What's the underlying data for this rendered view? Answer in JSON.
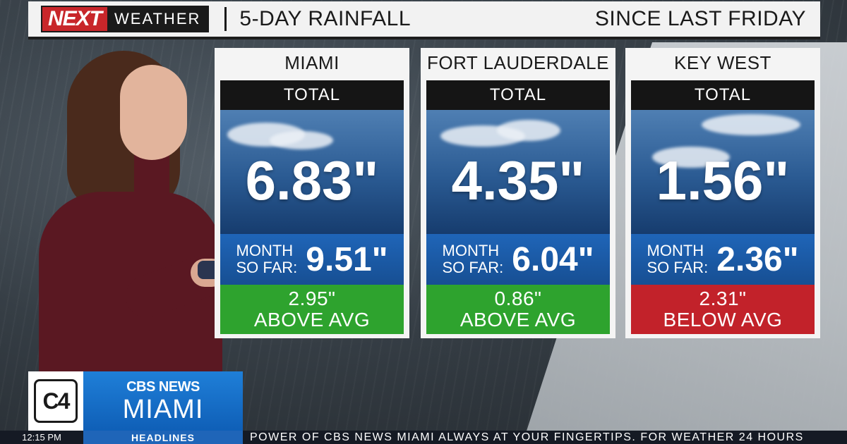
{
  "header": {
    "brand_next": "NEXT",
    "brand_weather": "WEATHER",
    "title": "5-DAY RAINFALL",
    "subtitle": "SINCE LAST FRIDAY"
  },
  "cards": [
    {
      "city": "MIAMI",
      "total_label": "TOTAL",
      "total": "6.83\"",
      "month_label_1": "MONTH",
      "month_label_2": "SO FAR:",
      "month_value": "9.51\"",
      "avg_value": "2.95\"",
      "avg_text": "ABOVE AVG",
      "avg_color": "#2ea32e"
    },
    {
      "city": "FORT LAUDERDALE",
      "total_label": "TOTAL",
      "total": "4.35\"",
      "month_label_1": "MONTH",
      "month_label_2": "SO FAR:",
      "month_value": "6.04\"",
      "avg_value": "0.86\"",
      "avg_text": "ABOVE AVG",
      "avg_color": "#2ea32e"
    },
    {
      "city": "KEY WEST",
      "total_label": "TOTAL",
      "total": "1.56\"",
      "month_label_1": "MONTH",
      "month_label_2": "SO FAR:",
      "month_value": "2.36\"",
      "avg_value": "2.31\"",
      "avg_text": "BELOW AVG",
      "avg_color": "#c2222a"
    }
  ],
  "station": {
    "logo": "C4",
    "line1": "CBS NEWS",
    "line2": "MIAMI"
  },
  "ticker": {
    "time": "12:15 PM",
    "headlines_label": "HEADLINES",
    "text": "POWER OF CBS NEWS MIAMI ALWAYS AT YOUR FINGERTIPS. FOR WEATHER 24 HOURS"
  }
}
